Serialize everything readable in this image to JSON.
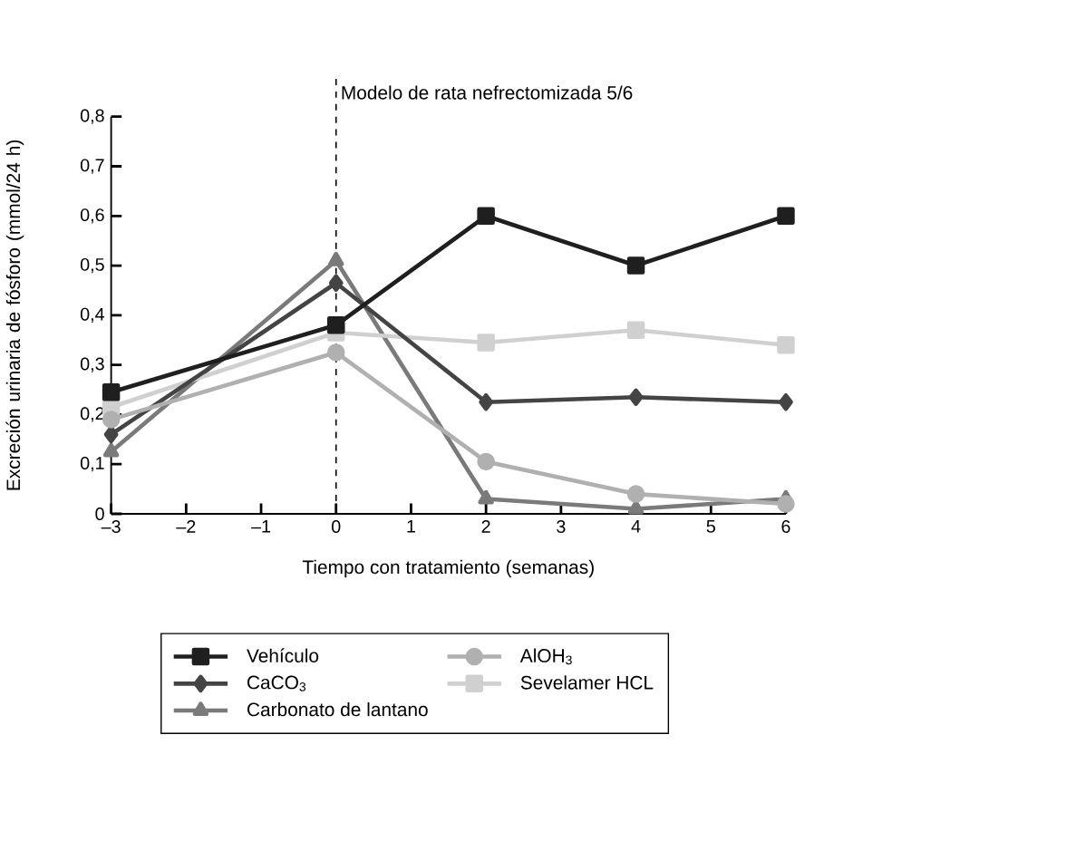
{
  "chart_data": {
    "type": "line",
    "xlabel": "Tiempo con tratamiento (semanas)",
    "ylabel": "Excreción urinaria de fósforo (mmol/24 h)",
    "x": [
      -3,
      0,
      2,
      4,
      6
    ],
    "xlim": [
      -3,
      6
    ],
    "xticks": [
      {
        "value": -3,
        "label": "–3"
      },
      {
        "value": -2,
        "label": "–2"
      },
      {
        "value": -1,
        "label": "–1"
      },
      0,
      1,
      2,
      3,
      4,
      5,
      6
    ],
    "ylim": [
      0,
      0.8
    ],
    "yticks": [
      0,
      {
        "value": 0.1,
        "label": "0,1"
      },
      {
        "value": 0.2,
        "label": "0,2"
      },
      {
        "value": 0.3,
        "label": "0,3"
      },
      {
        "value": 0.4,
        "label": "0,4"
      },
      {
        "value": 0.5,
        "label": "0,5"
      },
      {
        "value": 0.6,
        "label": "0,6"
      },
      {
        "value": 0.7,
        "label": "0,7"
      },
      {
        "value": 0.8,
        "label": "0,8"
      }
    ],
    "ref_lines": [
      {
        "axis": "x",
        "value": 0,
        "label": "Modelo de rata nefrectomizada 5/6",
        "line_style": "dashed",
        "color": "#000000"
      }
    ],
    "grid": false,
    "legend": "bottom",
    "line_style": "solid",
    "series": [
      {
        "name": "Vehículo",
        "color": "#1f1f1f",
        "marker": "square",
        "values": [
          0.245,
          0.38,
          0.6,
          0.5,
          0.6
        ]
      },
      {
        "name": "AlOH$_{3}$",
        "color": "#b0b0b0",
        "marker": "circle",
        "values": [
          0.19,
          0.325,
          0.105,
          0.04,
          0.02
        ]
      },
      {
        "name": "CaCO$_{3}$",
        "color": "#444444",
        "marker": "diamond",
        "values": [
          0.16,
          0.465,
          0.225,
          0.235,
          0.225
        ]
      },
      {
        "name": "Sevelamer HCL",
        "color": "#d0d0d0",
        "marker": "square",
        "values": [
          0.215,
          0.365,
          0.345,
          0.37,
          0.34
        ]
      },
      {
        "name": "Carbonato de lantano",
        "color": "#7a7a7a",
        "marker": "triangle",
        "values": [
          0.125,
          0.51,
          0.03,
          0.01,
          0.03
        ]
      }
    ]
  }
}
